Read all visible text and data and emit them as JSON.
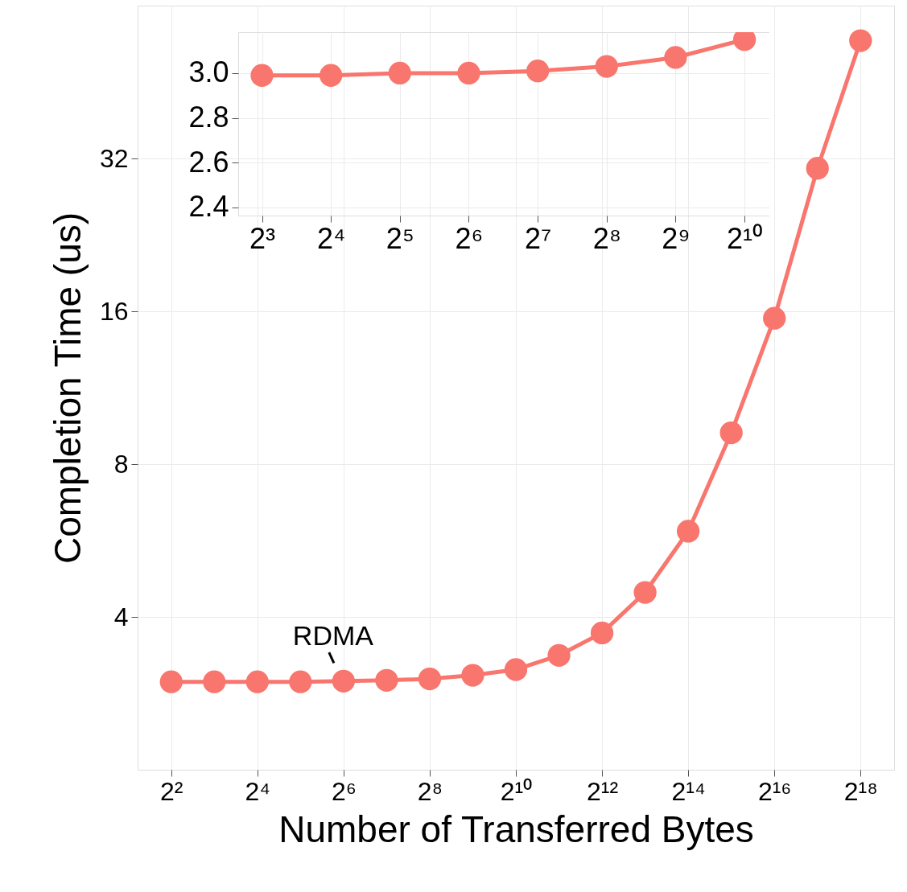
{
  "chart_data": [
    {
      "type": "line",
      "xlabel": "Number of Transferred Bytes",
      "ylabel": "Completion Time (us)",
      "x": [
        4,
        8,
        16,
        32,
        64,
        128,
        256,
        512,
        1024,
        2048,
        4096,
        8192,
        16384,
        32768,
        65536,
        131072,
        262144
      ],
      "series": [
        {
          "color": "#f8766d",
          "values": [
            2.98,
            2.98,
            2.98,
            2.98,
            2.99,
            3.0,
            3.02,
            3.07,
            3.15,
            3.36,
            3.72,
            4.47,
            5.9,
            9.22,
            15.5,
            30.6,
            54.6
          ]
        }
      ],
      "log": "xy",
      "xlim": [
        2.33,
        450000
      ],
      "ylim": [
        2,
        64
      ],
      "xticks": [
        {
          "value": 4,
          "label": "2²"
        },
        {
          "value": 16,
          "label": "2⁴"
        },
        {
          "value": 64,
          "label": "2⁶"
        },
        {
          "value": 256,
          "label": "2⁸"
        },
        {
          "value": 1024,
          "label": "2¹⁰"
        },
        {
          "value": 4096,
          "label": "2¹²"
        },
        {
          "value": 16384,
          "label": "2¹⁴"
        },
        {
          "value": 65536,
          "label": "2¹⁶"
        },
        {
          "value": 262144,
          "label": "2¹⁸"
        }
      ],
      "yticks": [
        4,
        8,
        16,
        32
      ],
      "grid": true,
      "marker": "circle",
      "line_style": "solid",
      "annotations": [
        {
          "text": "RDMA",
          "x": 64,
          "y": 2.99
        }
      ]
    },
    {
      "type": "line",
      "x": [
        8,
        16,
        32,
        64,
        128,
        256,
        512,
        1024
      ],
      "series": [
        {
          "color": "#f8766d",
          "values": [
            2.99,
            2.99,
            3.0,
            3.0,
            3.01,
            3.03,
            3.07,
            3.15
          ]
        }
      ],
      "log": "x",
      "xlim": [
        6.3,
        1315
      ],
      "ylim": [
        2.364,
        3.183
      ],
      "xticks": [
        {
          "value": 8,
          "label": "2³"
        },
        {
          "value": 16,
          "label": "2⁴"
        },
        {
          "value": 32,
          "label": "2⁵"
        },
        {
          "value": 64,
          "label": "2⁶"
        },
        {
          "value": 128,
          "label": "2⁷"
        },
        {
          "value": 256,
          "label": "2⁸"
        },
        {
          "value": 512,
          "label": "2⁹"
        },
        {
          "value": 1024,
          "label": "2¹⁰"
        }
      ],
      "yticks": [
        2.4,
        2.6,
        2.8,
        {
          "value": 3.0,
          "label": "3.0"
        }
      ],
      "grid": true,
      "marker": "circle",
      "line_style": "solid"
    }
  ]
}
